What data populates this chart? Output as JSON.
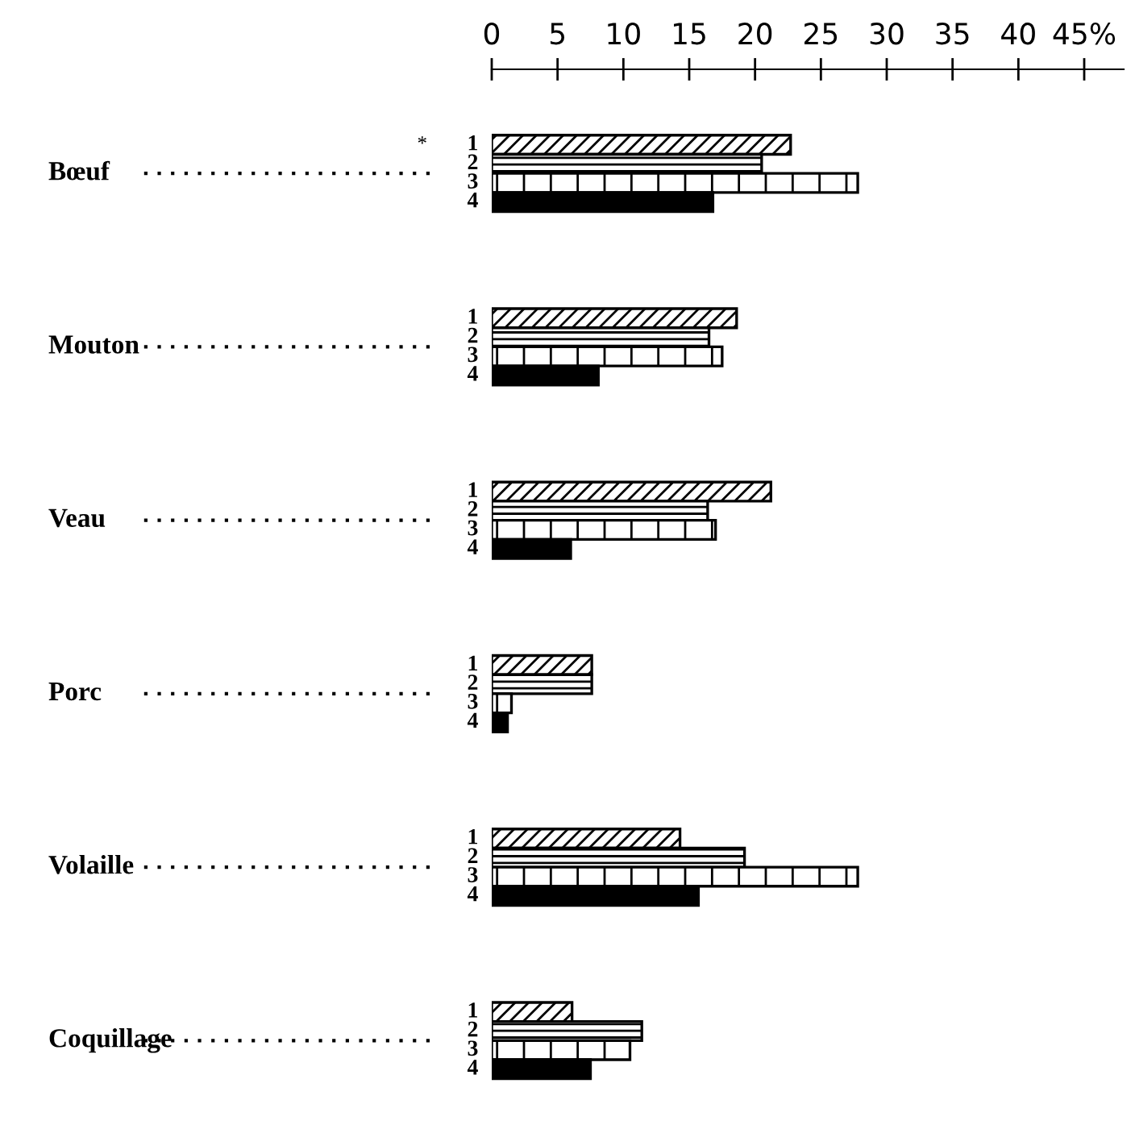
{
  "chart_data": {
    "type": "bar",
    "orientation": "horizontal",
    "categories": [
      "Bœuf",
      "Mouton",
      "Veau",
      "Porc",
      "Volaille",
      "Coquillage"
    ],
    "series": [
      {
        "name": "1",
        "axis": "x2",
        "color": "#000000",
        "values": [
          22.7,
          18.6,
          21.2,
          7.6,
          14.3,
          6.1
        ]
      },
      {
        "name": "2",
        "axis": "x2",
        "color": "#000000",
        "values": [
          20.5,
          16.5,
          16.4,
          7.6,
          19.2,
          11.4
        ]
      },
      {
        "name": "3",
        "axis": "x2",
        "color": "#000000",
        "values": [
          27.8,
          17.5,
          17.0,
          1.5,
          27.8,
          10.5
        ]
      },
      {
        "name": "4",
        "axis": "x2",
        "color": "#000000",
        "values": [
          16.8,
          8.1,
          6.0,
          1.2,
          15.7,
          7.5
        ]
      }
    ],
    "x2lim": [
      0,
      48
    ],
    "x2ticks": [
      0,
      5,
      10,
      15,
      20,
      25,
      30,
      35,
      40,
      {
        "value": 45,
        "label": "45%"
      }
    ],
    "grid": false,
    "annotations": [
      "*"
    ]
  }
}
